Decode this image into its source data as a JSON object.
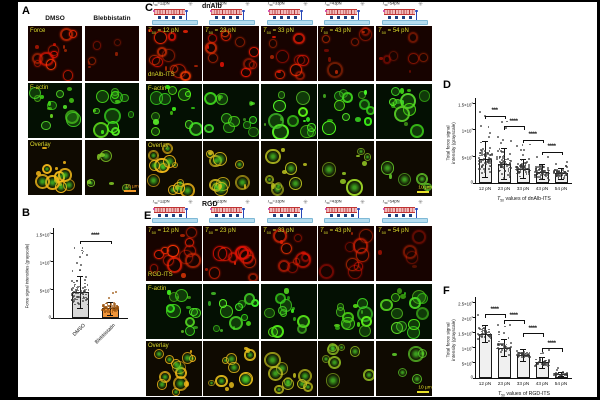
{
  "panels": {
    "A": {
      "letter": "A",
      "columns": [
        "DMSO",
        "Blebbistatin"
      ],
      "rows": [
        {
          "label": "Force",
          "channel": "force",
          "intensities": [
            1.0,
            0.25
          ]
        },
        {
          "label": "F-actin",
          "channel": "factin",
          "intensities": [
            1.0,
            0.95
          ]
        },
        {
          "label": "Overlay",
          "channel": "overlay",
          "intensities": [
            1.0,
            0.3
          ]
        }
      ],
      "scale_bar": "10 µm"
    },
    "B": {
      "letter": "B"
    },
    "C": {
      "letter": "C",
      "construct": "dnAlb",
      "schematic_labels": [
        "T50=12pN",
        "T50=23pN",
        "T50=33pN",
        "T50=43pN",
        "T50=54pN"
      ],
      "tile_labels": [
        "T50 = 12 pN",
        "T50 = 23 pN",
        "T50 = 33 pN",
        "T50 = 43 pN",
        "T50 = 54 pN"
      ],
      "rows": [
        {
          "label": "dnAlb-ITS",
          "channel": "force",
          "intensities": [
            1.0,
            0.9,
            0.75,
            0.55,
            0.35
          ]
        },
        {
          "label": "F-actin",
          "channel": "factin",
          "intensities": [
            1.0,
            1.0,
            1.0,
            1.0,
            1.0
          ]
        },
        {
          "label": "Overlay",
          "channel": "overlay",
          "intensities": [
            1.0,
            0.85,
            0.65,
            0.4,
            0.12
          ]
        }
      ],
      "scale_bar": "10 µm"
    },
    "D": {
      "letter": "D"
    },
    "E": {
      "letter": "E",
      "construct": "RGD",
      "schematic_labels": [
        "T50=12pN",
        "T50=23pN",
        "T50=33pN",
        "T50=43pN",
        "T50=54pN"
      ],
      "tile_labels": [
        "T50 = 12 pN",
        "T50 = 23 pN",
        "T50 = 33 pN",
        "T50 = 43 pN",
        "T50 = 54 pN"
      ],
      "rows": [
        {
          "label": "RGD-ITS",
          "channel": "force",
          "intensities": [
            1.0,
            0.9,
            0.7,
            0.55,
            0.12
          ]
        },
        {
          "label": "F-actin",
          "channel": "factin",
          "intensities": [
            1.0,
            1.0,
            1.0,
            1.0,
            1.0
          ]
        },
        {
          "label": "Overlay",
          "channel": "overlay",
          "intensities": [
            1.0,
            0.9,
            0.7,
            0.45,
            0.08
          ]
        }
      ],
      "scale_bar": "10 µm"
    },
    "F": {
      "letter": "F"
    }
  },
  "chart_data": [
    {
      "id": "B",
      "type": "bar",
      "categories": [
        "DMSO",
        "Blebbistatin"
      ],
      "values": [
        4600,
        1700
      ],
      "errors": [
        2900,
        1100
      ],
      "n_points": [
        80,
        70
      ],
      "bar_fills": [
        "#d9d9d9",
        "#f0953a"
      ],
      "dot_colors": [
        "#3a3a3a",
        "#9c5510"
      ],
      "title": "",
      "ylabel": "Force signal intensities (grayscale)",
      "xlabel": "",
      "ylim": [
        0,
        15000
      ],
      "yticks": [
        {
          "v": 0,
          "label": "0"
        },
        {
          "v": 5000,
          "label": "5×10^3"
        },
        {
          "v": 10000,
          "label": "1×10^4"
        },
        {
          "v": 15000,
          "label": "1.5×10^4"
        }
      ],
      "significance": [
        {
          "from": 0,
          "to": 1,
          "label": "****",
          "y": 13600
        }
      ],
      "x_tick_rotation": 45,
      "grid": false,
      "legend": "none"
    },
    {
      "id": "D",
      "type": "bar",
      "categories": [
        "12 pN",
        "23 pN",
        "33 pN",
        "43 pN",
        "54 pN"
      ],
      "values": [
        4500,
        3600,
        2700,
        2100,
        1800
      ],
      "errors": [
        3300,
        2900,
        1800,
        1400,
        1000
      ],
      "n_points": [
        70,
        70,
        70,
        65,
        60
      ],
      "bar_fills": [
        "#f0f0f0"
      ],
      "dot_colors": [
        "#3a3a3a"
      ],
      "title": "",
      "ylabel": "Total force signal\nintensity (grayscale)",
      "xlabel": "T50 values of dnAlb-ITS",
      "ylim": [
        0,
        15000
      ],
      "yticks": [
        {
          "v": 0,
          "label": "0"
        },
        {
          "v": 5000,
          "label": "5×10^3"
        },
        {
          "v": 10000,
          "label": "1×10^4"
        },
        {
          "v": 15000,
          "label": "1.5×10^4"
        }
      ],
      "significance": [
        {
          "from": 0,
          "to": 1,
          "label": "***",
          "y": 12600
        },
        {
          "from": 1,
          "to": 2,
          "label": "****",
          "y": 10600
        },
        {
          "from": 2,
          "to": 3,
          "label": "****",
          "y": 8100
        },
        {
          "from": 3,
          "to": 4,
          "label": "****",
          "y": 5900
        }
      ],
      "x_tick_rotation": 0,
      "grid": false,
      "legend": "none"
    },
    {
      "id": "F",
      "type": "bar",
      "categories": [
        "12 pN",
        "23 pN",
        "33 pN",
        "43 pN",
        "54 pN"
      ],
      "values": [
        14500,
        10000,
        7600,
        5100,
        1300
      ],
      "errors": [
        2800,
        2800,
        1900,
        1800,
        800
      ],
      "n_points": [
        42,
        42,
        40,
        38,
        30
      ],
      "bar_fills": [
        "#f0f0f0"
      ],
      "dot_colors": [
        "#3a3a3a"
      ],
      "title": "",
      "ylabel": "Total force signal\nintensity (grayscale)",
      "xlabel": "T50 values of RGD-ITS",
      "ylim": [
        0,
        25000
      ],
      "yticks": [
        {
          "v": 0,
          "label": "0"
        },
        {
          "v": 5000,
          "label": "5×10^3"
        },
        {
          "v": 10000,
          "label": "1×10^4"
        },
        {
          "v": 15000,
          "label": "1.5×10^4"
        },
        {
          "v": 20000,
          "label": "2×10^4"
        },
        {
          "v": 25000,
          "label": "2.5×10^4"
        }
      ],
      "significance": [
        {
          "from": 0,
          "to": 1,
          "label": "****",
          "y": 21000
        },
        {
          "from": 1,
          "to": 2,
          "label": "****",
          "y": 19000
        },
        {
          "from": 2,
          "to": 3,
          "label": "****",
          "y": 14800
        },
        {
          "from": 3,
          "to": 4,
          "label": "****",
          "y": 9800
        }
      ],
      "x_tick_rotation": 0,
      "grid": false,
      "legend": "none"
    }
  ]
}
